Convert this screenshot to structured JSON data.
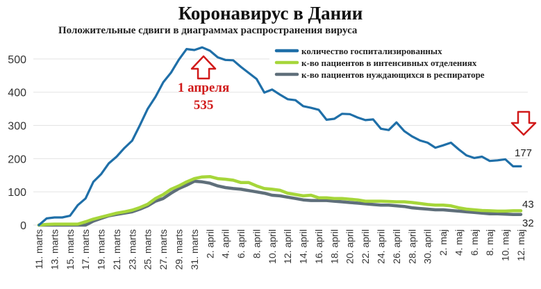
{
  "chart_data": {
    "type": "line",
    "title": "Коронавирус в Дании",
    "subtitle": "Положительные сдвиги в диаграммах распространения вируса",
    "ylim": [
      0,
      550
    ],
    "yticks": [
      0,
      100,
      200,
      300,
      400,
      500
    ],
    "x_tick_labels": [
      "11. marts",
      "13. marts",
      "15. marts",
      "17. marts",
      "19. marts",
      "21. marts",
      "23. marts",
      "25. marts",
      "27. marts",
      "29. marts",
      "31. marts",
      "2. april",
      "4. april",
      "6. april",
      "8. april",
      "10. april",
      "12. april",
      "14. april",
      "16. april",
      "18. april",
      "20. april",
      "22. april",
      "24. april",
      "26. april",
      "28. april",
      "30. april",
      "2. maj",
      "4. maj",
      "6. maj",
      "8. maj",
      "10. maj",
      "12. maj"
    ],
    "x": [
      "11. marts",
      "12. marts",
      "13. marts",
      "14. marts",
      "15. marts",
      "16. marts",
      "17. marts",
      "18. marts",
      "19. marts",
      "20. marts",
      "21. marts",
      "22. marts",
      "23. marts",
      "24. marts",
      "25. marts",
      "26. marts",
      "27. marts",
      "28. marts",
      "29. marts",
      "30. marts",
      "31. marts",
      "1. april",
      "2. april",
      "3. april",
      "4. april",
      "5. april",
      "6. april",
      "7. april",
      "8. april",
      "9. april",
      "10. april",
      "11. april",
      "12. april",
      "13. april",
      "14. april",
      "15. april",
      "16. april",
      "17. april",
      "18. april",
      "19. april",
      "20. april",
      "21. april",
      "22. april",
      "23. april",
      "24. april",
      "25. april",
      "26. april",
      "27. april",
      "28. april",
      "29. april",
      "30. april",
      "1. maj",
      "2. maj",
      "3. maj",
      "4. maj",
      "5. maj",
      "6. maj",
      "7. maj",
      "8. maj",
      "9. maj",
      "10. maj",
      "11. maj",
      "12. maj"
    ],
    "series": [
      {
        "name": "количество госпитализированных",
        "color": "#1f6fa8",
        "values": [
          0,
          20,
          23,
          23,
          28,
          60,
          80,
          130,
          153,
          186,
          206,
          232,
          254,
          301,
          350,
          386,
          430,
          459,
          498,
          530,
          527,
          535,
          525,
          505,
          497,
          496,
          476,
          458,
          440,
          399,
          408,
          393,
          379,
          376,
          358,
          353,
          347,
          317,
          320,
          335,
          334,
          324,
          316,
          318,
          290,
          286,
          309,
          283,
          267,
          255,
          248,
          233,
          240,
          248,
          228,
          210,
          202,
          206,
          193,
          195,
          198,
          177,
          177
        ]
      },
      {
        "name": "к-во пациентов в интенсивных отделениях",
        "color": "#a6d63a",
        "values": [
          0,
          2,
          3,
          3,
          3,
          3,
          10,
          18,
          24,
          30,
          36,
          40,
          45,
          53,
          63,
          80,
          92,
          108,
          118,
          130,
          140,
          145,
          146,
          140,
          138,
          135,
          128,
          128,
          118,
          110,
          108,
          105,
          96,
          92,
          88,
          90,
          82,
          82,
          80,
          80,
          78,
          76,
          72,
          72,
          72,
          71,
          70,
          70,
          68,
          65,
          62,
          60,
          60,
          58,
          52,
          48,
          46,
          44,
          43,
          42,
          42,
          43,
          43
        ]
      },
      {
        "name": "к-во пациентов нуждающихся в респираторе",
        "color": "#5f6f7a",
        "values": [
          0,
          0,
          0,
          0,
          0,
          0,
          0,
          12,
          20,
          28,
          32,
          36,
          40,
          48,
          58,
          72,
          80,
          96,
          110,
          120,
          132,
          130,
          126,
          118,
          113,
          110,
          108,
          104,
          100,
          96,
          90,
          88,
          84,
          80,
          76,
          74,
          74,
          74,
          72,
          70,
          68,
          66,
          64,
          62,
          60,
          60,
          58,
          56,
          52,
          50,
          48,
          46,
          46,
          44,
          42,
          40,
          38,
          36,
          34,
          34,
          33,
          32,
          32
        ]
      }
    ],
    "annotations": [
      {
        "text": "1 апреля",
        "color": "#d11a1a"
      },
      {
        "text": "535",
        "color": "#d11a1a"
      },
      {
        "text": "177",
        "color": "#222222"
      },
      {
        "text": "43",
        "color": "#222222"
      },
      {
        "text": "32",
        "color": "#222222"
      }
    ],
    "legend_position": "top-right",
    "grid": "horizontal"
  }
}
